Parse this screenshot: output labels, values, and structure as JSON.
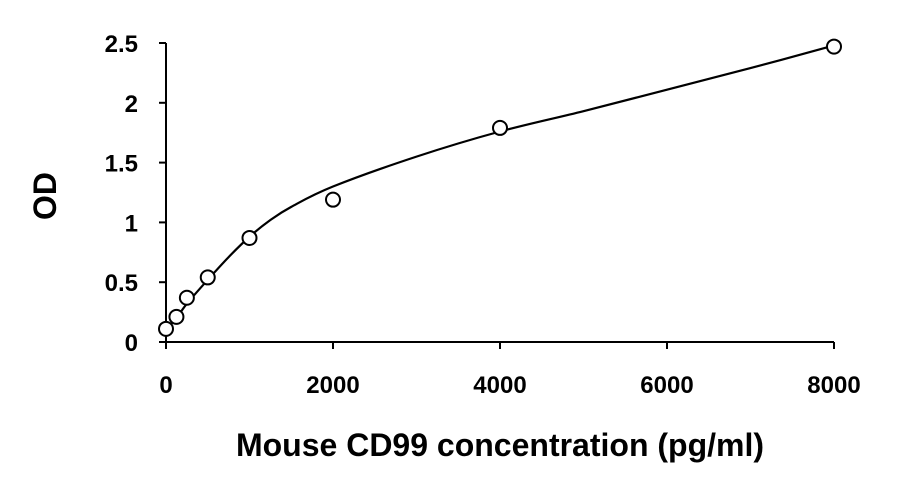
{
  "chart_data": {
    "type": "scatter",
    "title": "",
    "xlabel": "Mouse CD99 concentration (pg/ml)",
    "ylabel": "OD",
    "xlim": [
      0,
      8000
    ],
    "ylim": [
      0,
      2.5
    ],
    "x_ticks": [
      0,
      2000,
      4000,
      6000,
      8000
    ],
    "x_tick_labels": [
      "0",
      "2000",
      "4000",
      "6000",
      "8000"
    ],
    "y_ticks": [
      0,
      0.5,
      1,
      1.5,
      2,
      2.5
    ],
    "y_tick_labels": [
      "0",
      "0.5",
      "1",
      "1.5",
      "2",
      "2.5"
    ],
    "grid": false,
    "legend": "none",
    "series": [
      {
        "marker": "open-circle",
        "points": [
          {
            "x": 0,
            "y": 0.11
          },
          {
            "x": 125,
            "y": 0.21
          },
          {
            "x": 250,
            "y": 0.37
          },
          {
            "x": 500,
            "y": 0.54
          },
          {
            "x": 1000,
            "y": 0.87
          },
          {
            "x": 2000,
            "y": 1.19
          },
          {
            "x": 4000,
            "y": 1.79
          },
          {
            "x": 8000,
            "y": 2.47
          }
        ]
      }
    ],
    "fit_curve": {
      "type": "smooth",
      "points": [
        {
          "x": 0,
          "y": 0.11
        },
        {
          "x": 125,
          "y": 0.2
        },
        {
          "x": 250,
          "y": 0.32
        },
        {
          "x": 500,
          "y": 0.52
        },
        {
          "x": 750,
          "y": 0.71
        },
        {
          "x": 1000,
          "y": 0.88
        },
        {
          "x": 1250,
          "y": 1.02
        },
        {
          "x": 1500,
          "y": 1.13
        },
        {
          "x": 2000,
          "y": 1.3
        },
        {
          "x": 3000,
          "y": 1.55
        },
        {
          "x": 4000,
          "y": 1.76
        },
        {
          "x": 5000,
          "y": 1.93
        },
        {
          "x": 6000,
          "y": 2.11
        },
        {
          "x": 7000,
          "y": 2.29
        },
        {
          "x": 8000,
          "y": 2.48
        }
      ]
    },
    "colors": {
      "axis": "#000000",
      "marker": "#000000",
      "curve": "#000000",
      "background": "#ffffff"
    }
  }
}
